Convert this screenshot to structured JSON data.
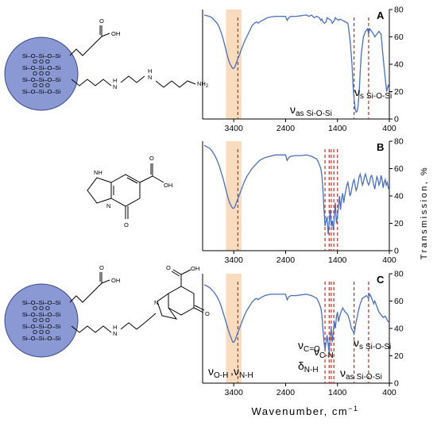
{
  "chart_data": {
    "type": "line",
    "xlabel": "Wavenumber, cm",
    "xlabel_exponent": "−1",
    "ylabel": "Transmission, %",
    "x_reversed": true,
    "xlim": [
      4000,
      400
    ],
    "x_ticks": [
      3400,
      2400,
      1400,
      400
    ],
    "ylim": [
      0,
      80
    ],
    "y_ticks": [
      0,
      20,
      40,
      60,
      80
    ],
    "highlight_band": [
      3550,
      3250
    ],
    "panels": [
      {
        "label": "A",
        "series": [
          {
            "x": [
              3970,
              3920,
              3870,
              3820,
              3770,
              3720,
              3680,
              3640,
              3600,
              3560,
              3520,
              3480,
              3440,
              3420,
              3400,
              3380,
              3360,
              3320,
              3280,
              3240,
              3200,
              3150,
              3100,
              3050,
              3000,
              2960,
              2930,
              2900,
              2850,
              2800,
              2750,
              2700,
              2600,
              2500,
              2400,
              2370,
              2340,
              2300,
              2200,
              2100,
              2000,
              1950,
              1900,
              1850,
              1800,
              1750,
              1720,
              1700,
              1680,
              1650,
              1620,
              1600,
              1560,
              1520,
              1500,
              1480,
              1460,
              1440,
              1420,
              1400,
              1380,
              1350,
              1300,
              1250,
              1200,
              1180,
              1150,
              1120,
              1100,
              1080,
              1060,
              1040,
              1020,
              1000,
              980,
              960,
              940,
              900,
              860,
              820,
              800,
              780,
              760,
              720,
              680,
              640,
              600,
              560,
              520,
              480,
              450,
              420,
              400
            ],
            "y": [
              76,
              75.5,
              75,
              74,
              72,
              70,
              67,
              63,
              58,
              52,
              46,
              41,
              38,
              37,
              37,
              38,
              40,
              44,
              48,
              52,
              56,
              60,
              64,
              68,
              70,
              71,
              70,
              71,
              72,
              73,
              74,
              74.5,
              75,
              75,
              75,
              72,
              74,
              75,
              75,
              75.5,
              76,
              75,
              76,
              74,
              75,
              74,
              72,
              73,
              71,
              70,
              71,
              74,
              73,
              72,
              70,
              71,
              72,
              74,
              73,
              73,
              72,
              73,
              72,
              71,
              70,
              65,
              55,
              40,
              25,
              15,
              8,
              5,
              6,
              10,
              20,
              35,
              48,
              60,
              64,
              66,
              62,
              66,
              65,
              63,
              60,
              62,
              64,
              62,
              45,
              30,
              20,
              25,
              22
            ]
          }
        ],
        "annotations": [
          {
            "main": "ν",
            "sub": "as",
            "group": "Si-O-Si",
            "x": 1080
          },
          {
            "main": "ν",
            "sub": "s",
            "group": "Si-O-Si",
            "x": 800
          }
        ]
      },
      {
        "label": "B",
        "series": [
          {
            "x": [
              3970,
              3920,
              3870,
              3820,
              3770,
              3720,
              3680,
              3640,
              3600,
              3560,
              3520,
              3480,
              3440,
              3420,
              3400,
              3380,
              3360,
              3320,
              3280,
              3240,
              3200,
              3150,
              3100,
              3050,
              3000,
              2950,
              2900,
              2850,
              2800,
              2700,
              2600,
              2500,
              2400,
              2370,
              2340,
              2300,
              2200,
              2100,
              2000,
              1900,
              1800,
              1760,
              1720,
              1700,
              1680,
              1660,
              1640,
              1620,
              1600,
              1580,
              1560,
              1540,
              1520,
              1500,
              1480,
              1460,
              1440,
              1420,
              1400,
              1380,
              1360,
              1340,
              1320,
              1300,
              1280,
              1260,
              1240,
              1220,
              1200,
              1180,
              1160,
              1140,
              1120,
              1100,
              1080,
              1060,
              1040,
              1020,
              1000,
              980,
              960,
              940,
              920,
              900,
              880,
              860,
              840,
              820,
              800,
              780,
              760,
              740,
              720,
              700,
              680,
              660,
              640,
              620,
              600,
              580,
              560,
              540,
              520,
              500,
              480,
              460,
              440,
              420,
              400
            ],
            "y": [
              77,
              76,
              75,
              73,
              70,
              66,
              62,
              57,
              52,
              46,
              40,
              35,
              32,
              31,
              31,
              32,
              34,
              38,
              42,
              46,
              50,
              54,
              57,
              60,
              62,
              64,
              66,
              67,
              68,
              69,
              70,
              70,
              70,
              66,
              68,
              69,
              69.5,
              69.5,
              70,
              69,
              67,
              64,
              60,
              55,
              45,
              30,
              18,
              22,
              25,
              12,
              20,
              30,
              18,
              22,
              15,
              25,
              35,
              20,
              25,
              32,
              40,
              30,
              38,
              42,
              35,
              40,
              44,
              48,
              50,
              46,
              40,
              42,
              46,
              50,
              52,
              48,
              44,
              46,
              50,
              54,
              56,
              52,
              48,
              50,
              54,
              56,
              53,
              50,
              48,
              50,
              54,
              55,
              52,
              48,
              45,
              50,
              54,
              52,
              48,
              50,
              55,
              52,
              46,
              50,
              52,
              48,
              50,
              46,
              44
            ]
          }
        ],
        "annotations": []
      },
      {
        "label": "C",
        "series": [
          {
            "x": [
              3970,
              3920,
              3870,
              3820,
              3770,
              3720,
              3680,
              3640,
              3600,
              3560,
              3520,
              3480,
              3440,
              3420,
              3400,
              3380,
              3360,
              3320,
              3280,
              3240,
              3200,
              3150,
              3100,
              3050,
              3000,
              2960,
              2930,
              2900,
              2850,
              2800,
              2700,
              2600,
              2500,
              2400,
              2370,
              2340,
              2300,
              2200,
              2100,
              2000,
              1900,
              1800,
              1760,
              1720,
              1700,
              1680,
              1660,
              1640,
              1620,
              1600,
              1580,
              1560,
              1540,
              1520,
              1500,
              1480,
              1460,
              1440,
              1420,
              1400,
              1380,
              1350,
              1300,
              1250,
              1200,
              1160,
              1130,
              1100,
              1080,
              1060,
              1040,
              1020,
              1000,
              980,
              960,
              940,
              920,
              880,
              840,
              800,
              780,
              760,
              740,
              720,
              700,
              680,
              660,
              640,
              620,
              600,
              560,
              520,
              480,
              440,
              420,
              400
            ],
            "y": [
              72,
              71,
              70,
              68,
              66,
              63,
              60,
              56,
              51,
              46,
              41,
              36,
              32,
              30,
              30,
              31,
              33,
              37,
              41,
              45,
              49,
              53,
              56,
              59,
              61,
              62,
              61,
              62,
              63,
              64,
              65,
              65,
              65,
              65,
              61,
              63,
              64,
              64,
              64.5,
              65,
              64,
              62,
              59,
              55,
              50,
              40,
              30,
              25,
              30,
              35,
              28,
              22,
              35,
              40,
              30,
              38,
              45,
              40,
              48,
              52,
              45,
              50,
              55,
              52,
              50,
              45,
              40,
              38,
              36,
              40,
              45,
              48,
              52,
              55,
              58,
              60,
              62,
              63,
              64,
              62,
              65,
              64,
              62,
              60,
              58,
              60,
              58,
              56,
              54,
              52,
              50,
              48,
              49,
              46,
              45,
              44
            ]
          }
        ],
        "annotations": [
          {
            "main": "ν",
            "sub": "O-H",
            "x": 3430
          },
          {
            "main": "ν",
            "sub": "N-H",
            "x": 3330
          },
          {
            "main": "ν",
            "sub": "C=O",
            "x": 1640
          },
          {
            "main": "δ",
            "sub": "N-H",
            "x": 1560
          },
          {
            "main": "ν",
            "sub": "C-N",
            "x": 1470
          },
          {
            "main": "ν",
            "sub": "as",
            "group": "Si-O-Si",
            "x": 1080
          },
          {
            "main": "ν",
            "sub": "s",
            "group": "Si-O-Si",
            "x": 800
          }
        ]
      }
    ]
  },
  "molecules": {
    "silica_core": {
      "rows": [
        "Si–O–Si–O–Si",
        "O   O   O",
        "Si–O–Si–O–Si",
        "O   O   O",
        "Si–O–Si–O–Si",
        "O   O   O",
        "Si–O–Si–O–Si"
      ]
    },
    "carboxyl": "OH",
    "carbonyl_o": "O",
    "amine_nh": "H",
    "amine_nh2": "NH",
    "amine_nh2_sub": "2",
    "ring_n": "N",
    "ring_nh": "NH",
    "ring_o": "O"
  }
}
